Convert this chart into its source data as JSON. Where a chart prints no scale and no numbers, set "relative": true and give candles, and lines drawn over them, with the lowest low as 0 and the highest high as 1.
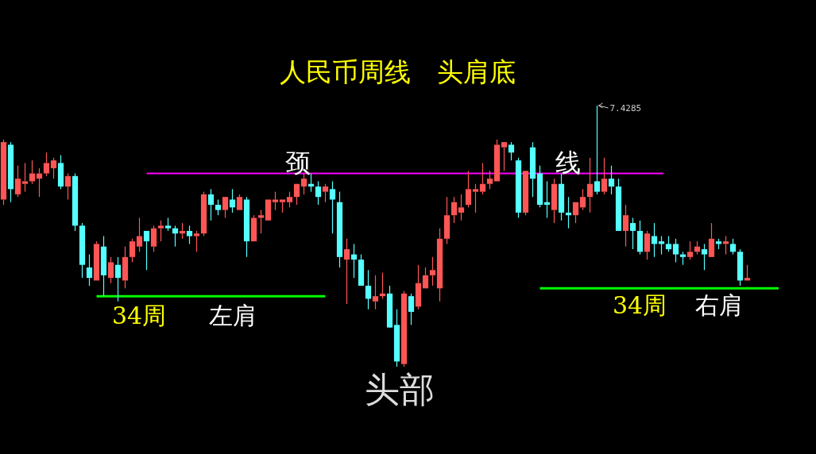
{
  "chart_data": {
    "type": "candlestick",
    "title": "人民币周线　头肩底",
    "relative": true,
    "annotations": [
      "颈",
      "线",
      "34周",
      "左肩",
      "头部",
      "34周",
      "右肩",
      "7.4285"
    ],
    "categories": [
      null,
      null,
      null,
      null,
      null,
      null,
      null,
      null,
      null,
      null,
      null,
      null,
      null,
      null,
      null,
      null,
      null,
      null,
      null,
      null,
      null,
      null,
      null,
      null,
      null,
      null,
      null,
      null,
      null,
      null,
      null,
      null,
      null,
      null,
      null,
      null,
      null,
      null,
      null,
      null,
      null,
      null,
      null,
      null,
      null,
      null,
      null,
      null,
      null,
      null,
      null,
      null,
      null,
      null,
      null,
      null,
      null,
      null,
      null,
      null,
      null,
      null,
      null,
      null,
      null,
      null,
      null,
      null,
      null,
      null,
      null,
      null,
      null,
      null,
      null,
      null,
      null,
      null,
      null,
      null,
      null,
      null,
      null,
      null,
      null,
      null,
      null,
      null,
      null,
      null,
      null,
      null,
      null,
      null,
      null,
      null,
      null,
      null,
      null,
      null,
      null,
      null,
      null,
      null,
      null
    ],
    "ohlc": [
      [
        0.64,
        0.87,
        0.62,
        0.86
      ],
      [
        0.85,
        0.86,
        0.63,
        0.68
      ],
      [
        0.66,
        0.77,
        0.65,
        0.72
      ],
      [
        0.7,
        0.78,
        0.67,
        0.71
      ],
      [
        0.71,
        0.79,
        0.7,
        0.74
      ],
      [
        0.72,
        0.76,
        0.65,
        0.74
      ],
      [
        0.74,
        0.82,
        0.73,
        0.78
      ],
      [
        0.76,
        0.8,
        0.72,
        0.79
      ],
      [
        0.78,
        0.81,
        0.68,
        0.69
      ],
      [
        0.69,
        0.74,
        0.64,
        0.73
      ],
      [
        0.73,
        0.74,
        0.52,
        0.54
      ],
      [
        0.54,
        0.55,
        0.34,
        0.39
      ],
      [
        0.38,
        0.43,
        0.31,
        0.34
      ],
      [
        0.33,
        0.48,
        0.33,
        0.47
      ],
      [
        0.46,
        0.5,
        0.27,
        0.35
      ],
      [
        0.34,
        0.42,
        0.32,
        0.4
      ],
      [
        0.39,
        0.42,
        0.25,
        0.34
      ],
      [
        0.33,
        0.46,
        0.3,
        0.42
      ],
      [
        0.42,
        0.49,
        0.4,
        0.48
      ],
      [
        0.46,
        0.57,
        0.44,
        0.5
      ],
      [
        0.52,
        0.52,
        0.37,
        0.48
      ],
      [
        0.46,
        0.54,
        0.44,
        0.53
      ],
      [
        0.53,
        0.56,
        0.48,
        0.54
      ],
      [
        0.54,
        0.57,
        0.52,
        0.53
      ],
      [
        0.53,
        0.54,
        0.46,
        0.51
      ],
      [
        0.51,
        0.55,
        0.49,
        0.52
      ],
      [
        0.52,
        0.54,
        0.47,
        0.5
      ],
      [
        0.5,
        0.52,
        0.44,
        0.51
      ],
      [
        0.51,
        0.67,
        0.5,
        0.66
      ],
      [
        0.66,
        0.68,
        0.56,
        0.62
      ],
      [
        0.62,
        0.64,
        0.58,
        0.6
      ],
      [
        0.6,
        0.65,
        0.57,
        0.65
      ],
      [
        0.64,
        0.68,
        0.59,
        0.61
      ],
      [
        0.6,
        0.66,
        0.6,
        0.65
      ],
      [
        0.64,
        0.65,
        0.42,
        0.48
      ],
      [
        0.48,
        0.58,
        0.48,
        0.57
      ],
      [
        0.57,
        0.6,
        0.51,
        0.58
      ],
      [
        0.56,
        0.64,
        0.56,
        0.64
      ],
      [
        0.63,
        0.67,
        0.6,
        0.64
      ],
      [
        0.63,
        0.64,
        0.59,
        0.64
      ],
      [
        0.63,
        0.67,
        0.61,
        0.65
      ],
      [
        0.65,
        0.7,
        0.62,
        0.7
      ],
      [
        0.69,
        0.74,
        0.66,
        0.72
      ],
      [
        0.7,
        0.74,
        0.67,
        0.69
      ],
      [
        0.69,
        0.71,
        0.62,
        0.65
      ],
      [
        0.67,
        0.7,
        0.63,
        0.69
      ],
      [
        0.68,
        0.71,
        0.51,
        0.64
      ],
      [
        0.63,
        0.67,
        0.38,
        0.42
      ],
      [
        0.41,
        0.49,
        0.24,
        0.45
      ],
      [
        0.43,
        0.47,
        0.34,
        0.41
      ],
      [
        0.41,
        0.43,
        0.31,
        0.31
      ],
      [
        0.31,
        0.37,
        0.22,
        0.26
      ],
      [
        0.25,
        0.35,
        0.22,
        0.27
      ],
      [
        0.27,
        0.36,
        0.26,
        0.28
      ],
      [
        0.28,
        0.31,
        0.15,
        0.15
      ],
      [
        0.16,
        0.22,
        0,
        0.02
      ],
      [
        0.01,
        0.29,
        0,
        0.28
      ],
      [
        0.27,
        0.28,
        0.16,
        0.21
      ],
      [
        0.23,
        0.39,
        0.22,
        0.32
      ],
      [
        0.3,
        0.38,
        0.3,
        0.35
      ],
      [
        0.35,
        0.42,
        0.31,
        0.37
      ],
      [
        0.3,
        0.53,
        0.25,
        0.49
      ],
      [
        0.49,
        0.65,
        0.47,
        0.58
      ],
      [
        0.58,
        0.65,
        0.55,
        0.63
      ],
      [
        0.59,
        0.66,
        0.56,
        0.61
      ],
      [
        0.62,
        0.75,
        0.61,
        0.68
      ],
      [
        0.67,
        0.7,
        0.59,
        0.68
      ],
      [
        0.67,
        0.78,
        0.66,
        0.7
      ],
      [
        0.7,
        0.75,
        0.68,
        0.72
      ],
      [
        0.71,
        0.87,
        0.71,
        0.85
      ],
      [
        0.84,
        0.86,
        0.75,
        0.86
      ],
      [
        0.85,
        0.86,
        0.79,
        0.82
      ],
      [
        0.79,
        0.8,
        0.57,
        0.59
      ],
      [
        0.59,
        0.75,
        0.58,
        0.75
      ],
      [
        0.84,
        0.86,
        0.65,
        0.72
      ],
      [
        0.74,
        0.77,
        0.61,
        0.62
      ],
      [
        0.63,
        0.71,
        0.57,
        0.62
      ],
      [
        0.6,
        0.72,
        0.55,
        0.7
      ],
      [
        0.7,
        0.74,
        0.56,
        0.59
      ],
      [
        0.59,
        0.65,
        0.53,
        0.58
      ],
      [
        0.58,
        0.63,
        0.55,
        0.63
      ],
      [
        0.61,
        0.68,
        0.6,
        0.65
      ],
      [
        0.65,
        0.8,
        0.59,
        0.7
      ],
      [
        0.71,
        1,
        0.66,
        0.67
      ],
      [
        0.67,
        0.8,
        0.66,
        0.72
      ],
      [
        0.72,
        0.77,
        0.66,
        0.69
      ],
      [
        0.69,
        0.72,
        0.52,
        0.52
      ],
      [
        0.52,
        0.62,
        0.46,
        0.58
      ],
      [
        0.55,
        0.57,
        0.45,
        0.52
      ],
      [
        0.52,
        0.56,
        0.43,
        0.44
      ],
      [
        0.44,
        0.52,
        0.41,
        0.51
      ],
      [
        0.5,
        0.55,
        0.42,
        0.47
      ],
      [
        0.48,
        0.5,
        0.43,
        0.47
      ],
      [
        0.47,
        0.5,
        0.44,
        0.45
      ],
      [
        0.47,
        0.49,
        0.4,
        0.43
      ],
      [
        0.43,
        0.44,
        0.39,
        0.42
      ],
      [
        0.42,
        0.48,
        0.41,
        0.44
      ],
      [
        0.44,
        0.48,
        0.43,
        0.46
      ],
      [
        0.45,
        0.47,
        0.37,
        0.43
      ],
      [
        0.42,
        0.55,
        0.42,
        0.49
      ],
      [
        0.48,
        0.49,
        0.45,
        0.47
      ],
      [
        0.47,
        0.5,
        0.43,
        0.48
      ],
      [
        0.47,
        0.49,
        0.43,
        0.44
      ],
      [
        0.44,
        0.45,
        0.31,
        0.33
      ],
      [
        0.33,
        0.39,
        0.33,
        0.34
      ]
    ],
    "ref_lines": [
      {
        "axis": "y",
        "value": 0.74,
        "color": "#ff00ff"
      },
      {
        "axis": "y",
        "value": 0.27,
        "color": "#00ff00"
      },
      {
        "axis": "y",
        "value": 0.3,
        "color": "#00ff00"
      }
    ]
  }
}
